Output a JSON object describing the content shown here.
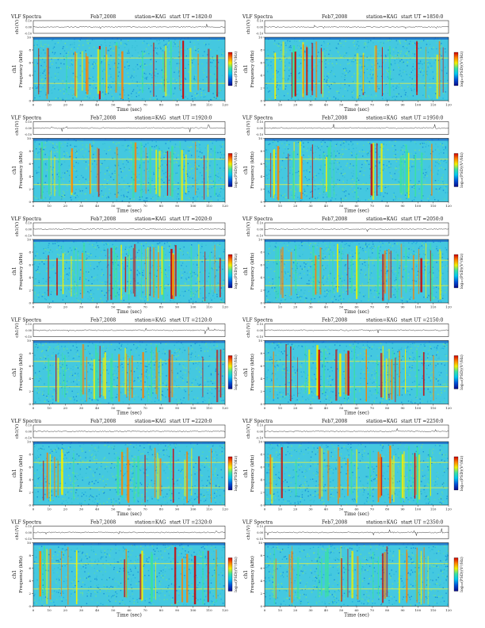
{
  "page": {
    "title_left": "VLF Spectra",
    "date": "Feb7,2008",
    "station": "station=KAG",
    "start_prefix": "start  UT =",
    "time_axis_label": "Time  (sec)",
    "waveform_axis_label": "ch1(V)",
    "freq_axis_label_line1": "ch1",
    "freq_axis_label_line2": "Frequency  (kHz)",
    "colorbar_label": "log₁₀(PSD)(V²/Hz)"
  },
  "chart_data": [
    {
      "type": "heatmap",
      "panel": "1820",
      "start_ut": "1820:0",
      "xlim": [
        0,
        120
      ],
      "ylim_freq_khz": [
        0,
        10
      ],
      "xticks": [
        0,
        10,
        20,
        30,
        40,
        50,
        60,
        70,
        80,
        90,
        100,
        110,
        120
      ],
      "yticks": [
        0,
        2,
        4,
        6,
        8,
        10
      ],
      "waveform_yticks": [
        -0.1,
        0.0,
        0.1
      ],
      "waveform_ylim": [
        -0.1,
        0.1
      ]
    },
    {
      "type": "heatmap",
      "panel": "1850",
      "start_ut": "1850:0",
      "xlim": [
        0,
        120
      ],
      "ylim_freq_khz": [
        0,
        10
      ],
      "xticks": [
        0,
        10,
        20,
        30,
        40,
        50,
        60,
        70,
        80,
        90,
        100,
        110,
        120
      ],
      "yticks": [
        0,
        2,
        4,
        6,
        8,
        10
      ],
      "waveform_yticks": [
        -0.1,
        0.0,
        0.1
      ],
      "waveform_ylim": [
        -0.1,
        0.1
      ]
    },
    {
      "type": "heatmap",
      "panel": "1920",
      "start_ut": "1920:0",
      "xlim": [
        0,
        120
      ],
      "ylim_freq_khz": [
        0,
        10
      ],
      "xticks": [
        0,
        10,
        20,
        30,
        40,
        50,
        60,
        70,
        80,
        90,
        100,
        110,
        120
      ],
      "yticks": [
        0,
        2,
        4,
        6,
        8,
        10
      ],
      "waveform_yticks": [
        -0.1,
        0.0,
        0.1
      ],
      "waveform_ylim": [
        -0.1,
        0.1
      ]
    },
    {
      "type": "heatmap",
      "panel": "1950",
      "start_ut": "1950:0",
      "xlim": [
        0,
        120
      ],
      "ylim_freq_khz": [
        0,
        10
      ],
      "xticks": [
        0,
        10,
        20,
        30,
        40,
        50,
        60,
        70,
        80,
        90,
        100,
        110,
        120
      ],
      "yticks": [
        0,
        2,
        4,
        6,
        8,
        10
      ],
      "waveform_yticks": [
        -0.1,
        0.0,
        0.1
      ],
      "waveform_ylim": [
        -0.1,
        0.1
      ]
    },
    {
      "type": "heatmap",
      "panel": "2020",
      "start_ut": "2020:0",
      "xlim": [
        0,
        120
      ],
      "ylim_freq_khz": [
        0,
        10
      ],
      "xticks": [
        0,
        10,
        20,
        30,
        40,
        50,
        60,
        70,
        80,
        90,
        100,
        110,
        120
      ],
      "yticks": [
        0,
        2,
        4,
        6,
        8,
        10
      ],
      "waveform_yticks": [
        -0.1,
        0.0,
        0.1
      ],
      "waveform_ylim": [
        -0.1,
        0.1
      ]
    },
    {
      "type": "heatmap",
      "panel": "2050",
      "start_ut": "2050:0",
      "xlim": [
        0,
        120
      ],
      "ylim_freq_khz": [
        0,
        10
      ],
      "xticks": [
        0,
        10,
        20,
        30,
        40,
        50,
        60,
        70,
        80,
        90,
        100,
        110,
        120
      ],
      "yticks": [
        0,
        2,
        4,
        6,
        8,
        10
      ],
      "waveform_yticks": [
        -0.1,
        0.0,
        0.1
      ],
      "waveform_ylim": [
        -0.1,
        0.1
      ]
    },
    {
      "type": "heatmap",
      "panel": "2120",
      "start_ut": "2120:0",
      "xlim": [
        0,
        120
      ],
      "ylim_freq_khz": [
        0,
        10
      ],
      "xticks": [
        0,
        10,
        20,
        30,
        40,
        50,
        60,
        70,
        80,
        90,
        100,
        110,
        120
      ],
      "yticks": [
        0,
        2,
        4,
        6,
        8,
        10
      ],
      "waveform_yticks": [
        -0.1,
        0.0,
        0.1
      ],
      "waveform_ylim": [
        -0.1,
        0.1
      ]
    },
    {
      "type": "heatmap",
      "panel": "2150",
      "start_ut": "2150:0",
      "xlim": [
        0,
        120
      ],
      "ylim_freq_khz": [
        0,
        10
      ],
      "xticks": [
        0,
        10,
        20,
        30,
        40,
        50,
        60,
        70,
        80,
        90,
        100,
        110,
        120
      ],
      "yticks": [
        0,
        2,
        4,
        6,
        8,
        10
      ],
      "waveform_yticks": [
        -0.1,
        0.0,
        0.1
      ],
      "waveform_ylim": [
        -0.1,
        0.1
      ]
    },
    {
      "type": "heatmap",
      "panel": "2220",
      "start_ut": "2220:0",
      "xlim": [
        0,
        120
      ],
      "ylim_freq_khz": [
        0,
        10
      ],
      "xticks": [
        0,
        10,
        20,
        30,
        40,
        50,
        60,
        70,
        80,
        90,
        100,
        110,
        120
      ],
      "yticks": [
        0,
        2,
        4,
        6,
        8,
        10
      ],
      "waveform_yticks": [
        -0.1,
        0.0,
        0.1
      ],
      "waveform_ylim": [
        -0.1,
        0.1
      ]
    },
    {
      "type": "heatmap",
      "panel": "2250",
      "start_ut": "2250:0",
      "xlim": [
        0,
        120
      ],
      "ylim_freq_khz": [
        0,
        10
      ],
      "xticks": [
        0,
        10,
        20,
        30,
        40,
        50,
        60,
        70,
        80,
        90,
        100,
        110,
        120
      ],
      "yticks": [
        0,
        2,
        4,
        6,
        8,
        10
      ],
      "waveform_yticks": [
        -0.1,
        0.0,
        0.1
      ],
      "waveform_ylim": [
        -0.1,
        0.1
      ]
    },
    {
      "type": "heatmap",
      "panel": "2320",
      "start_ut": "2320:0",
      "xlim": [
        0,
        120
      ],
      "ylim_freq_khz": [
        0,
        10
      ],
      "xticks": [
        0,
        10,
        20,
        30,
        40,
        50,
        60,
        70,
        80,
        90,
        100,
        110,
        120
      ],
      "yticks": [
        0,
        2,
        4,
        6,
        8,
        10
      ],
      "waveform_yticks": [
        -0.1,
        0.0,
        0.1
      ],
      "waveform_ylim": [
        -0.1,
        0.1
      ]
    },
    {
      "type": "heatmap",
      "panel": "2350",
      "start_ut": "2350:0",
      "xlim": [
        0,
        120
      ],
      "ylim_freq_khz": [
        0,
        10
      ],
      "xticks": [
        0,
        10,
        20,
        30,
        40,
        50,
        60,
        70,
        80,
        90,
        100,
        110,
        120
      ],
      "yticks": [
        0,
        2,
        4,
        6,
        8,
        10
      ],
      "waveform_yticks": [
        -0.1,
        0.0,
        0.1
      ],
      "waveform_ylim": [
        -0.1,
        0.1
      ]
    }
  ],
  "colors": {
    "background": "#44c8e0",
    "colormap": [
      "#0a0a8c",
      "#0050d8",
      "#00c8f0",
      "#3ce0a0",
      "#f0f000",
      "#ff8000",
      "#d00000"
    ]
  }
}
